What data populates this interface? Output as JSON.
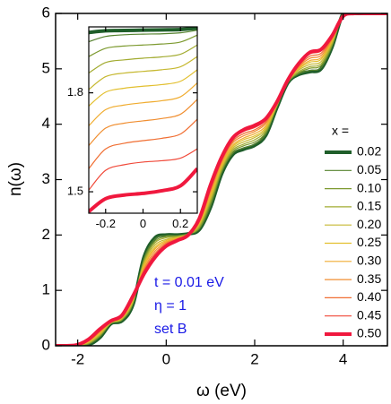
{
  "chart_data": [
    {
      "type": "line",
      "x_label": "ω (eV)",
      "y_label": "n(ω)",
      "xlim": [
        -2.5,
        5
      ],
      "ylim": [
        0,
        6
      ],
      "xticks": [
        -2,
        0,
        2,
        4
      ],
      "yticks": [
        0,
        1,
        2,
        3,
        4,
        5,
        6
      ],
      "legend_title": "x =",
      "legend_position": "right",
      "annotations": [
        "t = 0.01 eV",
        "η = 1",
        "set B"
      ],
      "annotation_color": "#1a1ae6",
      "x": [
        -2.5,
        -2.25,
        -2,
        -1.75,
        -1.5,
        -1.25,
        -1,
        -0.75,
        -0.5,
        -0.25,
        0,
        0.25,
        0.5,
        0.75,
        1,
        1.25,
        1.5,
        1.75,
        2,
        2.25,
        2.5,
        2.75,
        3,
        3.25,
        3.5,
        3.75,
        4,
        4.25,
        4.5,
        4.75,
        5
      ],
      "series": [
        {
          "name": "0.02",
          "color": "#1f5e2a",
          "line_width": 4,
          "values": [
            0,
            0,
            0,
            0.02,
            0.15,
            0.4,
            0.45,
            0.75,
            1.6,
            1.95,
            2.0,
            2.0,
            2.02,
            2.1,
            2.5,
            3.1,
            3.45,
            3.55,
            3.62,
            3.8,
            4.3,
            4.75,
            4.9,
            4.95,
            5.0,
            5.4,
            6,
            6,
            6,
            6,
            6
          ]
        },
        {
          "name": "0.05",
          "color": "#55822e",
          "line_width": 1.2,
          "values": [
            0,
            0,
            0,
            0.03,
            0.16,
            0.4,
            0.46,
            0.76,
            1.58,
            1.93,
            1.99,
            1.99,
            2.02,
            2.11,
            2.52,
            3.12,
            3.47,
            3.57,
            3.64,
            3.82,
            4.31,
            4.75,
            4.91,
            4.97,
            5.02,
            5.41,
            6,
            6,
            6,
            6,
            6
          ]
        },
        {
          "name": "0.10",
          "color": "#7d9a30",
          "line_width": 1.2,
          "values": [
            0,
            0,
            0,
            0.04,
            0.18,
            0.41,
            0.47,
            0.78,
            1.55,
            1.89,
            1.97,
            1.98,
            2.02,
            2.13,
            2.57,
            3.15,
            3.5,
            3.61,
            3.68,
            3.85,
            4.32,
            4.76,
            4.93,
            5.01,
            5.06,
            5.43,
            5.99,
            6,
            6,
            6,
            6
          ]
        },
        {
          "name": "0.15",
          "color": "#a2ab30",
          "line_width": 1.2,
          "values": [
            0,
            0,
            0.01,
            0.05,
            0.19,
            0.41,
            0.48,
            0.79,
            1.52,
            1.86,
            1.95,
            1.97,
            2.01,
            2.15,
            2.61,
            3.18,
            3.53,
            3.64,
            3.72,
            3.88,
            4.33,
            4.76,
            4.95,
            5.04,
            5.09,
            5.45,
            5.99,
            6,
            6,
            6,
            6
          ]
        },
        {
          "name": "0.20",
          "color": "#c6b830",
          "line_width": 1.2,
          "values": [
            0,
            0,
            0.01,
            0.06,
            0.21,
            0.42,
            0.49,
            0.81,
            1.49,
            1.82,
            1.92,
            1.96,
            2.01,
            2.18,
            2.65,
            3.21,
            3.56,
            3.68,
            3.76,
            3.91,
            4.34,
            4.77,
            4.98,
            5.08,
            5.13,
            5.48,
            5.98,
            6,
            6,
            6,
            6
          ]
        },
        {
          "name": "0.25",
          "color": "#e2bf2e",
          "line_width": 1.2,
          "values": [
            0,
            0,
            0.01,
            0.07,
            0.22,
            0.42,
            0.5,
            0.82,
            1.46,
            1.78,
            1.9,
            1.95,
            2.01,
            2.2,
            2.69,
            3.24,
            3.59,
            3.72,
            3.79,
            3.94,
            4.35,
            4.77,
            5.0,
            5.12,
            5.17,
            5.5,
            5.98,
            6,
            6,
            6,
            6
          ]
        },
        {
          "name": "0.30",
          "color": "#f0ac30",
          "line_width": 1.2,
          "values": [
            0,
            0,
            0.01,
            0.08,
            0.24,
            0.43,
            0.51,
            0.84,
            1.43,
            1.75,
            1.88,
            1.94,
            2.01,
            2.22,
            2.73,
            3.27,
            3.62,
            3.75,
            3.83,
            3.97,
            4.36,
            4.78,
            5.02,
            5.15,
            5.2,
            5.52,
            5.97,
            6,
            6,
            6,
            6
          ]
        },
        {
          "name": "0.35",
          "color": "#f08e30",
          "line_width": 1.2,
          "values": [
            0,
            0,
            0.01,
            0.09,
            0.25,
            0.43,
            0.52,
            0.85,
            1.39,
            1.71,
            1.86,
            1.93,
            2.01,
            2.24,
            2.78,
            3.31,
            3.66,
            3.79,
            3.87,
            4.01,
            4.37,
            4.78,
            5.04,
            5.19,
            5.24,
            5.54,
            5.97,
            6,
            6,
            6,
            6
          ]
        },
        {
          "name": "0.40",
          "color": "#f06e32",
          "line_width": 1.2,
          "values": [
            0,
            0,
            0.02,
            0.1,
            0.27,
            0.44,
            0.53,
            0.87,
            1.36,
            1.67,
            1.84,
            1.92,
            2.0,
            2.26,
            2.82,
            3.34,
            3.69,
            3.83,
            3.9,
            4.04,
            4.38,
            4.79,
            5.06,
            5.23,
            5.28,
            5.56,
            5.96,
            6,
            6,
            6,
            6
          ]
        },
        {
          "name": "0.45",
          "color": "#f04838",
          "line_width": 1.2,
          "values": [
            0,
            0,
            0.02,
            0.11,
            0.29,
            0.45,
            0.54,
            0.89,
            1.33,
            1.64,
            1.82,
            1.91,
            2.0,
            2.28,
            2.86,
            3.37,
            3.72,
            3.87,
            3.94,
            4.07,
            4.39,
            4.8,
            5.08,
            5.27,
            5.32,
            5.58,
            5.96,
            6,
            6,
            6,
            6
          ]
        },
        {
          "name": "0.50",
          "color": "#f0183e",
          "line_width": 4,
          "values": [
            0,
            0,
            0.02,
            0.12,
            0.3,
            0.45,
            0.55,
            0.9,
            1.3,
            1.6,
            1.8,
            1.9,
            2.0,
            2.3,
            2.9,
            3.4,
            3.75,
            3.9,
            3.98,
            4.1,
            4.4,
            4.8,
            5.1,
            5.3,
            5.35,
            5.6,
            5.95,
            6,
            6,
            6,
            6
          ]
        }
      ]
    },
    {
      "type": "line",
      "xlim": [
        -0.29,
        0.29
      ],
      "ylim": [
        1.435,
        2.0
      ],
      "xticks": [
        -0.2,
        0,
        0.2
      ],
      "yticks": [
        1.5,
        1.8
      ],
      "x": [
        -0.29,
        -0.2,
        -0.1,
        0,
        0.1,
        0.2,
        0.29
      ],
      "series": [
        {
          "color": "#1f5e2a",
          "line_width": 4,
          "values": [
            1.983,
            1.988,
            1.989,
            1.99,
            1.991,
            1.992,
            1.996
          ]
        },
        {
          "color": "#55822e",
          "line_width": 1.2,
          "values": [
            1.955,
            1.971,
            1.976,
            1.978,
            1.979,
            1.982,
            1.99
          ]
        },
        {
          "color": "#7d9a30",
          "line_width": 1.2,
          "values": [
            1.91,
            1.935,
            1.942,
            1.945,
            1.948,
            1.954,
            1.975
          ]
        },
        {
          "color": "#a2ab30",
          "line_width": 1.2,
          "values": [
            1.86,
            1.892,
            1.9,
            1.905,
            1.909,
            1.917,
            1.945
          ]
        },
        {
          "color": "#c6b830",
          "line_width": 1.2,
          "values": [
            1.81,
            1.849,
            1.86,
            1.865,
            1.87,
            1.879,
            1.91
          ]
        },
        {
          "color": "#e2bf2e",
          "line_width": 1.2,
          "values": [
            1.76,
            1.802,
            1.814,
            1.82,
            1.825,
            1.835,
            1.87
          ]
        },
        {
          "color": "#f0ac30",
          "line_width": 1.2,
          "values": [
            1.7,
            1.749,
            1.763,
            1.77,
            1.776,
            1.788,
            1.83
          ]
        },
        {
          "color": "#f08e30",
          "line_width": 1.2,
          "values": [
            1.64,
            1.693,
            1.708,
            1.715,
            1.722,
            1.735,
            1.78
          ]
        },
        {
          "color": "#f06e32",
          "line_width": 1.2,
          "values": [
            1.57,
            1.63,
            1.647,
            1.655,
            1.662,
            1.675,
            1.72
          ]
        },
        {
          "color": "#f04838",
          "line_width": 1.2,
          "values": [
            1.505,
            1.565,
            1.582,
            1.59,
            1.594,
            1.602,
            1.63
          ]
        },
        {
          "color": "#f0183e",
          "line_width": 4,
          "values": [
            1.44,
            1.479,
            1.49,
            1.495,
            1.503,
            1.518,
            1.57
          ]
        }
      ]
    }
  ]
}
